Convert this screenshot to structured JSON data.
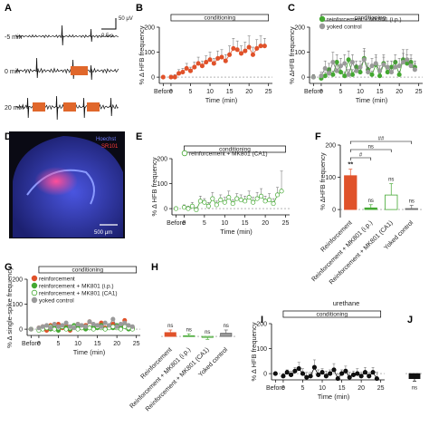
{
  "colors": {
    "reinforcement": "#e0522a",
    "mk801_ip": "#44a832",
    "mk801_ca1": "#ffffff",
    "mk801_ca1_stroke": "#44a832",
    "yoked": "#9a9a9a",
    "trace": "#111111",
    "stim": "#e0672b",
    "urethane": "#111111"
  },
  "panels": {
    "A": {
      "letter": "A",
      "scale_y": "50 µV",
      "scale_x": "0.5 s",
      "rows": [
        "-5 min",
        "0 min",
        "20 min"
      ]
    },
    "D": {
      "letter": "D",
      "stain1": "Hoechst",
      "stain2": "SR101",
      "scalebar": "500 µm"
    }
  },
  "chart_data": [
    {
      "panel": "B",
      "letter": "B",
      "type": "line",
      "ylabel": "% Δ HFB frequency",
      "xlabel": "Time (min)",
      "bar_label": "conditioning",
      "ylim": [
        -25,
        200
      ],
      "yticks": [
        0,
        100,
        200
      ],
      "xticks": [
        "Before",
        "0",
        "5",
        "10",
        "15",
        "20",
        "25"
      ],
      "series": [
        {
          "name": "reinforcement",
          "color": "#e0522a",
          "x": [
            0,
            1,
            2,
            3,
            4,
            5,
            6,
            7,
            8,
            9,
            10,
            11,
            12,
            13,
            14,
            15,
            16,
            17,
            18,
            19,
            20,
            21,
            22,
            23,
            24,
            25
          ],
          "y": [
            0,
            0,
            0,
            15,
            20,
            35,
            25,
            40,
            55,
            45,
            60,
            70,
            55,
            75,
            80,
            65,
            90,
            115,
            110,
            95,
            105,
            120,
            90,
            115,
            125,
            125
          ],
          "err": [
            5,
            8,
            10,
            15,
            15,
            20,
            15,
            20,
            25,
            20,
            25,
            30,
            20,
            30,
            30,
            25,
            35,
            40,
            35,
            30,
            35,
            45,
            30,
            35,
            40,
            30
          ]
        }
      ]
    },
    {
      "panel": "C",
      "letter": "C",
      "type": "line",
      "ylabel": "% ΔHFB frequency",
      "xlabel": "Time (min)",
      "bar_label": "conditioning",
      "ylim": [
        -25,
        200
      ],
      "yticks": [
        0,
        100,
        200
      ],
      "xticks": [
        "Before",
        "0",
        "5",
        "10",
        "15",
        "20",
        "25"
      ],
      "legend": [
        "reinforcement + MK801 (i.p.)",
        "yoked control"
      ],
      "series": [
        {
          "name": "reinforcement + MK801 (i.p.)",
          "color": "#44a832",
          "x": [
            0,
            1,
            2,
            3,
            4,
            5,
            6,
            7,
            8,
            9,
            10,
            11,
            12,
            13,
            14,
            15,
            16,
            17,
            18,
            19,
            20,
            21,
            22,
            23,
            24,
            25
          ],
          "y": [
            0,
            -5,
            5,
            30,
            10,
            60,
            20,
            5,
            70,
            10,
            40,
            20,
            75,
            30,
            10,
            50,
            5,
            55,
            20,
            40,
            60,
            10,
            70,
            55,
            60,
            40
          ],
          "err": [
            10,
            15,
            15,
            25,
            15,
            30,
            20,
            15,
            35,
            20,
            25,
            20,
            40,
            25,
            15,
            30,
            15,
            35,
            20,
            25,
            30,
            15,
            40,
            35,
            30,
            25
          ]
        },
        {
          "name": "yoked control",
          "color": "#9a9a9a",
          "x": [
            0,
            1,
            2,
            3,
            4,
            5,
            6,
            7,
            8,
            9,
            10,
            11,
            12,
            13,
            14,
            15,
            16,
            17,
            18,
            19,
            20,
            21,
            22,
            23,
            24,
            25
          ],
          "y": [
            0,
            5,
            35,
            15,
            60,
            25,
            45,
            55,
            10,
            60,
            25,
            40,
            70,
            20,
            45,
            55,
            25,
            50,
            40,
            20,
            40,
            45,
            60,
            70,
            45,
            30
          ],
          "err": [
            10,
            15,
            30,
            20,
            40,
            25,
            30,
            35,
            20,
            30,
            25,
            25,
            35,
            20,
            30,
            35,
            20,
            30,
            25,
            20,
            25,
            30,
            35,
            40,
            30,
            25
          ]
        }
      ]
    },
    {
      "panel": "E",
      "letter": "E",
      "type": "line",
      "ylabel": "% Δ HFB frequency",
      "xlabel": "Time (min)",
      "bar_label": "conditioning",
      "ylim": [
        -25,
        200
      ],
      "yticks": [
        0,
        100,
        200
      ],
      "xticks": [
        "Before",
        "0",
        "5",
        "10",
        "15",
        "20",
        "25"
      ],
      "legend": [
        "reinforcement + MK801 (CA1)"
      ],
      "series": [
        {
          "name": "reinforcement + MK801 (CA1)",
          "color": "#44a832",
          "x": [
            0,
            1,
            2,
            3,
            4,
            5,
            6,
            7,
            8,
            9,
            10,
            11,
            12,
            13,
            14,
            15,
            16,
            17,
            18,
            19,
            20,
            21,
            22,
            23,
            24,
            25
          ],
          "y": [
            0,
            5,
            0,
            10,
            -5,
            30,
            25,
            10,
            40,
            15,
            35,
            25,
            45,
            20,
            40,
            35,
            30,
            45,
            25,
            40,
            50,
            30,
            35,
            20,
            55,
            70
          ],
          "err": [
            5,
            10,
            10,
            15,
            10,
            20,
            15,
            15,
            25,
            15,
            20,
            20,
            25,
            15,
            20,
            20,
            20,
            25,
            20,
            25,
            30,
            20,
            25,
            20,
            30,
            80
          ]
        }
      ]
    },
    {
      "panel": "F",
      "letter": "F",
      "type": "bar",
      "ylabel": "% ΔHFB frequency",
      "categories": [
        "Reinforcement",
        "Reinforcement + MK801 (i.p.)",
        "Reinforcement + MK801 (CA1)",
        "Yoked control"
      ],
      "values": [
        105,
        5,
        45,
        3
      ],
      "err": [
        20,
        10,
        35,
        10
      ],
      "ylim": [
        -25,
        200
      ],
      "yticks": [
        0,
        100,
        200
      ],
      "bar_labels": [
        "**",
        "ns",
        "ns",
        "ns"
      ],
      "comparisons": [
        {
          "label": "#",
          "from": 0,
          "to": 1
        },
        {
          "label": "ns",
          "from": 0,
          "to": 2
        },
        {
          "label": "##",
          "from": 0,
          "to": 3
        }
      ]
    },
    {
      "panel": "G",
      "letter": "G",
      "type": "line",
      "ylabel": "% Δ single-spike frequency",
      "xlabel": "Time (min)",
      "bar_label": "conditioning",
      "ylim": [
        -25,
        200
      ],
      "yticks": [
        0,
        100,
        200
      ],
      "xticks": [
        "Before",
        "0",
        "5",
        "10",
        "15",
        "20",
        "25"
      ],
      "legend": [
        "reinforcement",
        "reinforcement + MK801 (i.p.)",
        "reinforcement + MK801 (CA1)",
        "yoked control"
      ],
      "series": [
        {
          "name": "reinforcement",
          "color": "#e0522a",
          "x": [
            0,
            1,
            2,
            3,
            4,
            5,
            6,
            7,
            8,
            9,
            10,
            11,
            12,
            13,
            14,
            15,
            16,
            17,
            18,
            19,
            20,
            21,
            22,
            23,
            24,
            25
          ],
          "y": [
            0,
            5,
            10,
            -5,
            15,
            10,
            20,
            5,
            10,
            -5,
            10,
            20,
            5,
            15,
            30,
            10,
            15,
            25,
            5,
            10,
            20,
            10,
            15,
            35,
            10,
            5
          ]
        },
        {
          "name": "reinforcement + MK801 (i.p.)",
          "color": "#44a832",
          "x": [
            0,
            1,
            2,
            3,
            4,
            5,
            6,
            7,
            8,
            9,
            10,
            11,
            12,
            13,
            14,
            15,
            16,
            17,
            18,
            19,
            20,
            21,
            22,
            23,
            24,
            25
          ],
          "y": [
            0,
            0,
            5,
            10,
            0,
            5,
            -5,
            10,
            5,
            0,
            15,
            5,
            10,
            0,
            5,
            10,
            5,
            15,
            0,
            10,
            5,
            15,
            5,
            10,
            0,
            5
          ]
        },
        {
          "name": "reinforcement + MK801 (CA1)",
          "color": "#44a832",
          "x": [
            0,
            1,
            2,
            3,
            4,
            5,
            6,
            7,
            8,
            9,
            10,
            11,
            12,
            13,
            14,
            15,
            16,
            17,
            18,
            19,
            20,
            21,
            22,
            23,
            24,
            25
          ],
          "y": [
            0,
            -5,
            0,
            5,
            10,
            0,
            5,
            10,
            0,
            5,
            10,
            0,
            5,
            10,
            5,
            0,
            10,
            5,
            0,
            5,
            10,
            5,
            0,
            10,
            5,
            0
          ]
        },
        {
          "name": "yoked control",
          "color": "#9a9a9a",
          "x": [
            0,
            1,
            2,
            3,
            4,
            5,
            6,
            7,
            8,
            9,
            10,
            11,
            12,
            13,
            14,
            15,
            16,
            17,
            18,
            19,
            20,
            21,
            22,
            23,
            24,
            25
          ],
          "y": [
            0,
            5,
            10,
            15,
            5,
            20,
            10,
            15,
            25,
            10,
            5,
            20,
            15,
            10,
            30,
            20,
            15,
            10,
            25,
            15,
            40,
            10,
            20,
            25,
            15,
            10
          ]
        }
      ]
    },
    {
      "panel": "H",
      "letter": "H",
      "type": "bar",
      "categories": [
        "Reinforcement",
        "Reinforcement + MK801 (i.p.)",
        "Reinforcement + MK801 (CA1)",
        "Yoked control"
      ],
      "values": [
        12,
        2,
        -3,
        10
      ],
      "err": [
        8,
        6,
        6,
        10
      ],
      "ylim": [
        -25,
        200
      ],
      "bar_labels": [
        "ns",
        "ns",
        "ns",
        "ns"
      ]
    },
    {
      "panel": "I",
      "letter": "I",
      "type": "line",
      "title": "urethane",
      "ylabel": "% Δ HFB frequency",
      "xlabel": "Time (min)",
      "bar_label": "conditioning",
      "ylim": [
        -25,
        200
      ],
      "yticks": [
        0,
        100,
        200
      ],
      "xticks": [
        "Before",
        "0",
        "5",
        "10",
        "15",
        "20",
        "25"
      ],
      "series": [
        {
          "name": "urethane",
          "color": "#111111",
          "x": [
            0,
            1,
            2,
            3,
            4,
            5,
            6,
            7,
            8,
            9,
            10,
            11,
            12,
            13,
            14,
            15,
            16,
            17,
            18,
            19,
            20,
            21,
            22,
            23,
            24,
            25
          ],
          "y": [
            0,
            -10,
            5,
            -5,
            10,
            20,
            0,
            -15,
            -10,
            25,
            -5,
            5,
            -10,
            0,
            15,
            -20,
            0,
            10,
            -15,
            -5,
            0,
            -10,
            5,
            -10,
            5,
            -20
          ],
          "err": [
            5,
            10,
            10,
            15,
            15,
            25,
            20,
            20,
            15,
            30,
            20,
            15,
            20,
            15,
            25,
            20,
            15,
            20,
            20,
            15,
            20,
            15,
            20,
            15,
            20,
            25
          ]
        }
      ]
    },
    {
      "panel": "J",
      "letter": "J",
      "type": "bar",
      "categories": [
        ""
      ],
      "values": [
        -20
      ],
      "err": [
        10
      ],
      "ylim": [
        -25,
        200
      ],
      "bar_labels": [
        "ns"
      ]
    }
  ]
}
